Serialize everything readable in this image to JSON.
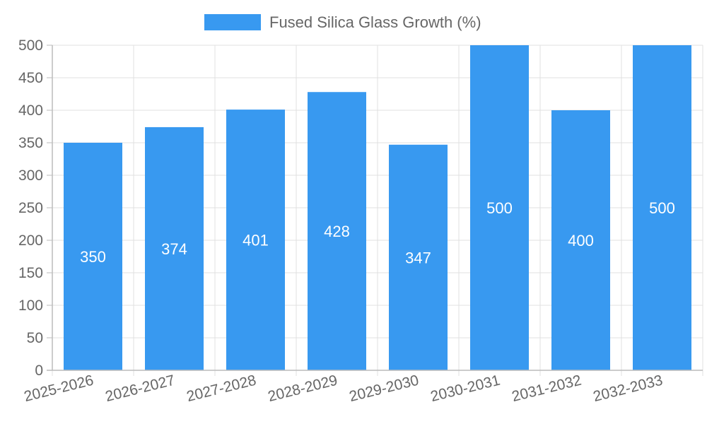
{
  "chart_data": {
    "type": "bar",
    "title": "",
    "legend": {
      "label": "Fused Silica Glass Growth (%)",
      "position": "top-center"
    },
    "categories": [
      "2025-2026",
      "2026-2027",
      "2027-2028",
      "2028-2029",
      "2029-2030",
      "2030-2031",
      "2031-2032",
      "2032-2033"
    ],
    "series": [
      {
        "name": "Fused Silica Glass Growth (%)",
        "values": [
          350,
          374,
          401,
          428,
          347,
          500,
          400,
          500
        ],
        "color": "#3899F0"
      }
    ],
    "data_labels": [
      "350",
      "374",
      "401",
      "428",
      "347",
      "500",
      "400",
      "500"
    ],
    "xlabel": "",
    "ylabel": "",
    "ylim": [
      0,
      500
    ],
    "yticks": [
      0,
      50,
      100,
      150,
      200,
      250,
      300,
      350,
      400,
      450,
      500
    ],
    "grid": true
  }
}
